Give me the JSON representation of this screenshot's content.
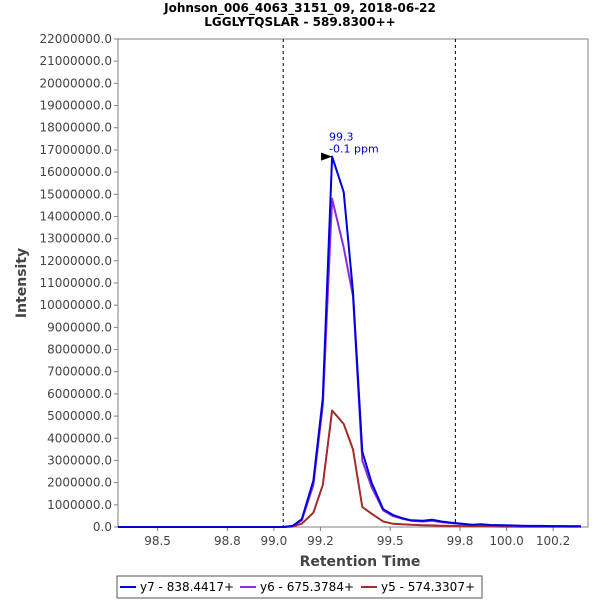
{
  "chart_data": {
    "type": "line",
    "title": "Johnson_006_4063_3151_09, 2018-06-22",
    "subtitle": "LGGLYTQSLAR - 589.8300++",
    "xlabel": "Retention Time",
    "ylabel": "Intensity",
    "xlim": [
      98.33,
      100.35
    ],
    "ylim": [
      0,
      22000000
    ],
    "x_ticks": [
      {
        "value": 98.5,
        "label": "98.5"
      },
      {
        "value": 98.8,
        "label": "98.8"
      },
      {
        "value": 99.0,
        "label": "99.0"
      },
      {
        "value": 99.2,
        "label": "99.2"
      },
      {
        "value": 99.5,
        "label": "99.5"
      },
      {
        "value": 99.8,
        "label": "99.8"
      },
      {
        "value": 100.0,
        "label": "100.0"
      },
      {
        "value": 100.2,
        "label": "100.2"
      }
    ],
    "y_ticks": [
      {
        "value": 0,
        "label": "0.0"
      },
      {
        "value": 1000000,
        "label": "1000000.0"
      },
      {
        "value": 2000000,
        "label": "2000000.0"
      },
      {
        "value": 3000000,
        "label": "3000000.0"
      },
      {
        "value": 4000000,
        "label": "4000000.0"
      },
      {
        "value": 5000000,
        "label": "5000000.0"
      },
      {
        "value": 6000000,
        "label": "6000000.0"
      },
      {
        "value": 7000000,
        "label": "7000000.0"
      },
      {
        "value": 8000000,
        "label": "8000000.0"
      },
      {
        "value": 9000000,
        "label": "9000000.0"
      },
      {
        "value": 10000000,
        "label": "10000000.0"
      },
      {
        "value": 11000000,
        "label": "11000000.0"
      },
      {
        "value": 12000000,
        "label": "12000000.0"
      },
      {
        "value": 13000000,
        "label": "13000000.0"
      },
      {
        "value": 14000000,
        "label": "14000000.0"
      },
      {
        "value": 15000000,
        "label": "15000000.0"
      },
      {
        "value": 16000000,
        "label": "16000000.0"
      },
      {
        "value": 17000000,
        "label": "17000000.0"
      },
      {
        "value": 18000000,
        "label": "18000000.0"
      },
      {
        "value": 19000000,
        "label": "19000000.0"
      },
      {
        "value": 20000000,
        "label": "20000000.0"
      },
      {
        "value": 21000000,
        "label": "21000000.0"
      },
      {
        "value": 22000000,
        "label": "22000000.0"
      }
    ],
    "integration_bounds": [
      99.04,
      99.78
    ],
    "series": [
      {
        "name": "y7 - 838.4417+",
        "color": "#0000dd",
        "x": [
          98.33,
          98.95,
          99.04,
          99.08,
          99.12,
          99.17,
          99.21,
          99.25,
          99.3,
          99.34,
          99.38,
          99.42,
          99.47,
          99.51,
          99.55,
          99.59,
          99.64,
          99.68,
          99.72,
          99.76,
          99.81,
          99.85,
          99.89,
          99.93,
          99.98,
          100.02,
          100.06,
          100.1,
          100.15,
          100.19,
          100.23,
          100.28,
          100.32
        ],
        "values": [
          0,
          0,
          0,
          50000,
          350000,
          2100000,
          5800000,
          16700000,
          15100000,
          10600000,
          3400000,
          2000000,
          800000,
          550000,
          400000,
          300000,
          280000,
          330000,
          250000,
          200000,
          150000,
          100000,
          120000,
          90000,
          80000,
          70000,
          60000,
          50000,
          50000,
          40000,
          40000,
          30000,
          30000
        ]
      },
      {
        "name": "y6 - 675.3784+",
        "color": "#8a2be2",
        "x": [
          98.33,
          98.95,
          99.04,
          99.08,
          99.12,
          99.17,
          99.21,
          99.25,
          99.3,
          99.34,
          99.38,
          99.42,
          99.47,
          99.51,
          99.55,
          99.59,
          99.64,
          99.68,
          99.72,
          99.76,
          99.81,
          99.85,
          99.89,
          99.93,
          99.98,
          100.02,
          100.06,
          100.1,
          100.15,
          100.19,
          100.23,
          100.28,
          100.32
        ],
        "values": [
          0,
          0,
          0,
          30000,
          300000,
          1900000,
          5500000,
          14800000,
          12600000,
          10400000,
          3000000,
          1800000,
          750000,
          500000,
          380000,
          280000,
          250000,
          280000,
          220000,
          180000,
          130000,
          90000,
          100000,
          80000,
          70000,
          60000,
          50000,
          40000,
          40000,
          35000,
          30000,
          30000,
          25000
        ]
      },
      {
        "name": "y5 - 574.3307+",
        "color": "#a52a2a",
        "x": [
          98.33,
          98.95,
          99.04,
          99.08,
          99.12,
          99.17,
          99.21,
          99.25,
          99.3,
          99.34,
          99.38,
          99.42,
          99.47,
          99.51,
          99.55,
          99.59,
          99.64,
          99.68,
          99.72,
          99.76,
          99.81,
          99.85,
          99.89,
          99.93,
          99.98,
          100.02,
          100.06,
          100.1,
          100.15,
          100.19,
          100.23,
          100.28,
          100.32
        ],
        "values": [
          0,
          0,
          0,
          20000,
          150000,
          650000,
          1900000,
          5250000,
          4650000,
          3500000,
          900000,
          600000,
          250000,
          150000,
          120000,
          100000,
          80000,
          70000,
          60000,
          50000,
          40000,
          35000,
          30000,
          25000,
          20000,
          20000,
          15000,
          15000,
          10000,
          10000,
          10000,
          10000,
          10000
        ]
      }
    ],
    "annotation": {
      "x": 99.25,
      "y": 16700000,
      "line1": "99.3",
      "line2": "-0.1 ppm",
      "color": "#0000cc"
    }
  }
}
